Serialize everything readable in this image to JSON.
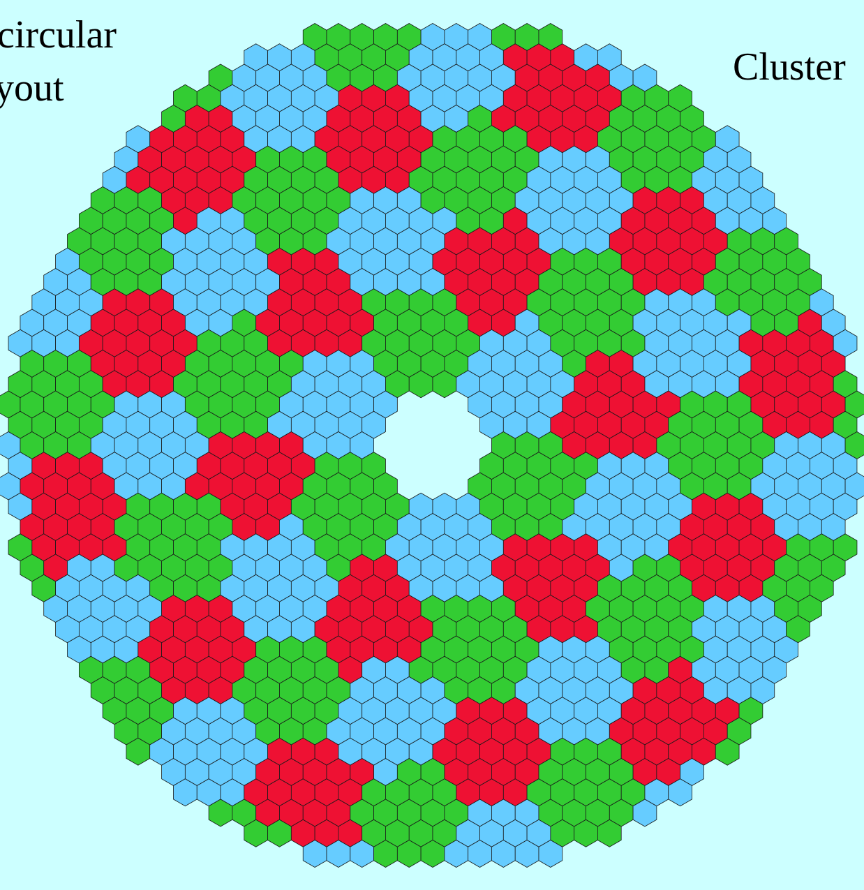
{
  "captions": {
    "left_line1": "circular",
    "left_line2": "yout",
    "right": "Cluster"
  },
  "colors": {
    "background": "#ccffff",
    "red": "#ee1133",
    "green": "#33cc33",
    "blue": "#66ccff",
    "outline": "#1a1a1a"
  },
  "legend_semantics": {
    "hexagon": "single mirror/pixel cell",
    "cluster": "group of hexagons sharing one color",
    "color_cycle": [
      "red",
      "green",
      "blue"
    ]
  }
}
